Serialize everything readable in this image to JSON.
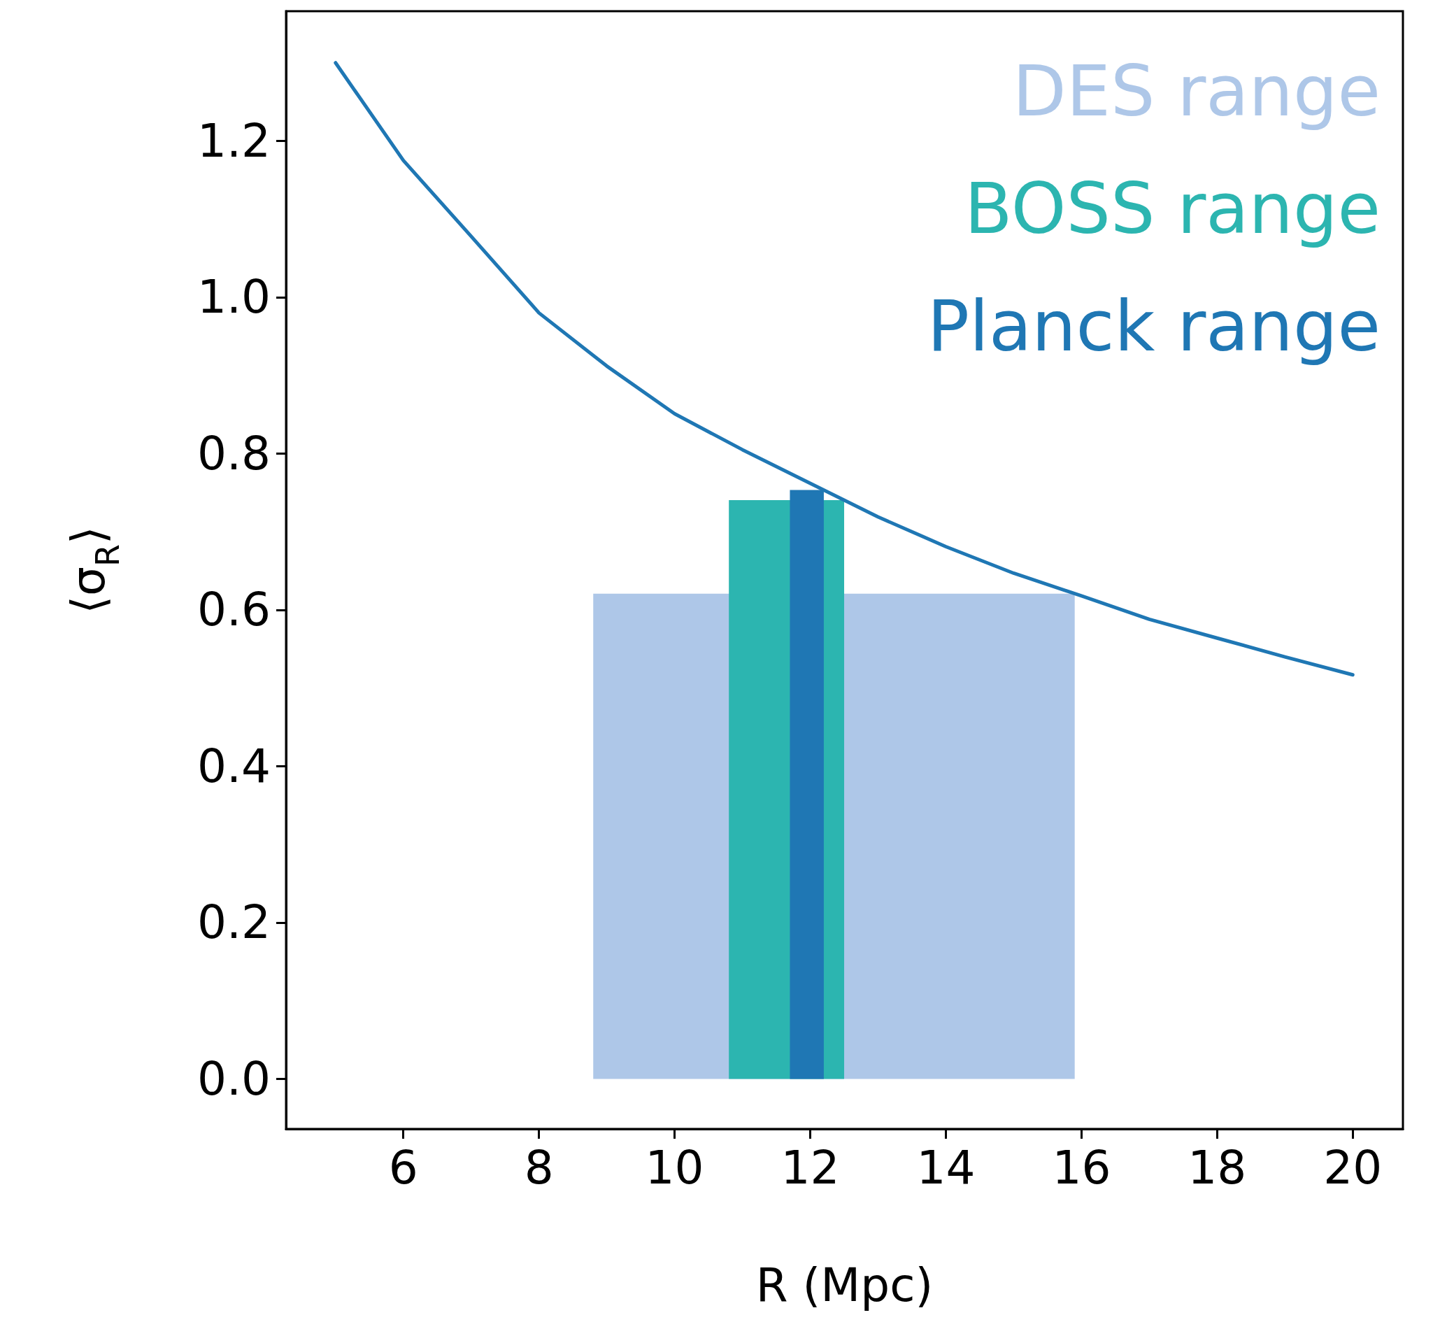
{
  "chart_data": {
    "type": "line",
    "xlabel": "R (Mpc)",
    "ylabel": "⟨σ$_{R}$⟩",
    "x": [
      5,
      6,
      7,
      8,
      9,
      10,
      11,
      12,
      13,
      14,
      15,
      16,
      17,
      18,
      19,
      20
    ],
    "series": [
      {
        "color": "#1f77b4",
        "values": [
          1.3,
          1.175,
          1.078,
          0.98,
          0.912,
          0.851,
          0.805,
          0.762,
          0.719,
          0.681,
          0.647,
          0.618,
          0.588,
          0.564,
          0.54,
          0.517
        ]
      }
    ],
    "xlim": [
      4.27,
      20.74
    ],
    "ylim": [
      -0.064,
      1.366
    ],
    "xticks": [
      6,
      8,
      10,
      12,
      14,
      16,
      18,
      20
    ],
    "yticks": [
      {
        "value": 0,
        "label": "0.0"
      },
      {
        "value": 0.2,
        "label": "0.2"
      },
      {
        "value": 0.4,
        "label": "0.4"
      },
      {
        "value": 0.6,
        "label": "0.6"
      },
      {
        "value": 0.8,
        "label": "0.8"
      },
      {
        "value": 1.0,
        "label": "1.0"
      },
      {
        "value": 1.2,
        "label": "1.2"
      }
    ],
    "bands": [
      {
        "axis": "x",
        "from": 8.8,
        "to": 15.9,
        "label": "DES range",
        "color": "#aec7e8"
      },
      {
        "axis": "x",
        "from": 10.8,
        "to": 12.5,
        "label": "BOSS range",
        "color": "#2cb5b0"
      },
      {
        "axis": "x",
        "from": 11.7,
        "to": 12.2,
        "label": "Planck range",
        "color": "#1f77b4"
      }
    ],
    "marker": "none",
    "line_style": "solid",
    "grid": false
  }
}
